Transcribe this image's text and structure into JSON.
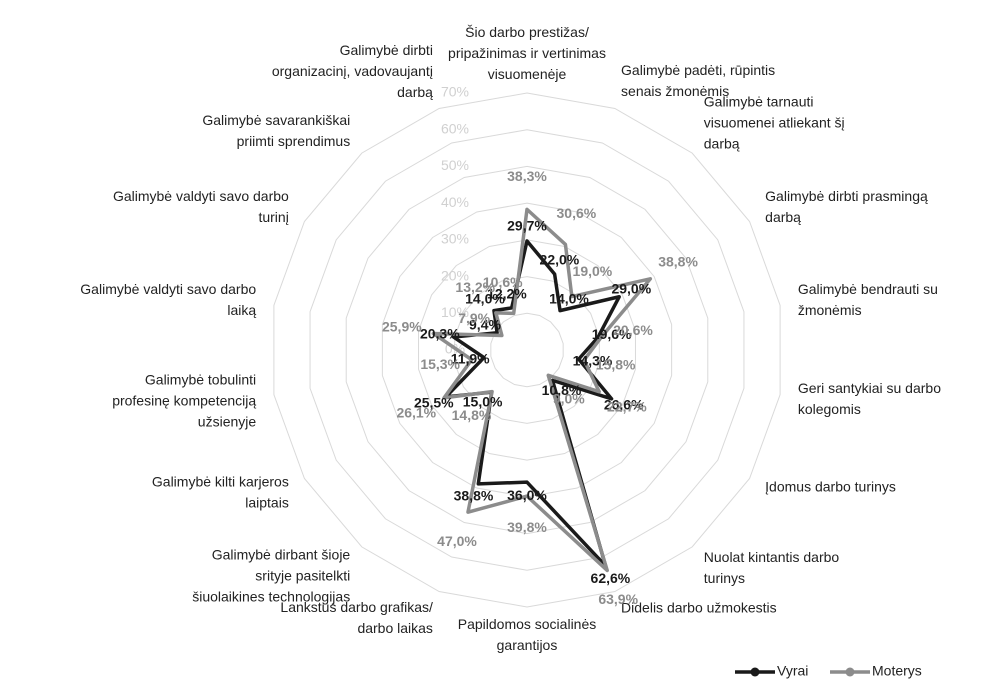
{
  "chart_data": {
    "type": "radar",
    "categories": [
      "Šio darbo prestižas/ pripažinimas ir vertinimas visuomenėje",
      "Galimybė padėti, rūpintis senais žmonėmis",
      "Galimybė tarnauti visuomenei atliekant šį darbą",
      "Galimybė dirbti prasmingą darbą",
      "Galimybė bendrauti su žmonėmis",
      "Geri santykiai su darbo kolegomis",
      "Įdomus darbo turinys",
      "Nuolat kintantis darbo turinys",
      "Didelis darbo užmokestis",
      "Papildomos socialinės garantijos",
      "Lankstus darbo grafikas/ darbo laikas",
      "Galimybė dirbant šioje srityje pasitelkti šiuolaikines technologijas",
      "Galimybė kilti karjeros laiptais",
      "Galimybė tobulinti profesinę kompetenciją užsienyje",
      "Galimybė valdyti savo darbo laiką",
      "Galimybė valdyti savo darbo turinį",
      "Galimybė savarankiškai priimti sprendimus",
      "Galimybė dirbti organizacinį, vadovaujantį darbą"
    ],
    "series": [
      {
        "name": "Vyrai",
        "color": "#1a1a1a",
        "values": [
          29.7,
          22.0,
          14.0,
          29.0,
          19.6,
          14.3,
          26.6,
          10.8,
          62.6,
          36.0,
          38.8,
          15.0,
          25.5,
          11.9,
          20.3,
          9.4,
          14.0,
          12.2
        ],
        "value_labels": [
          "29,7%",
          "22,0%",
          "14,0%",
          "29,0%",
          "19,6%",
          "14,3%",
          "26,6%",
          "10,8%",
          "62,6%",
          "36,0%",
          "38,8%",
          "15,0%",
          "25,5%",
          "11,9%",
          "20,3%",
          "9,4%",
          "14,0%",
          "12,2%"
        ]
      },
      {
        "name": "Moterys",
        "color": "#8c8c8c",
        "values": [
          38.3,
          30.6,
          19.0,
          38.8,
          20.6,
          15.8,
          22.7,
          9.0,
          63.9,
          39.8,
          47.0,
          14.8,
          26.1,
          15.3,
          25.9,
          7.9,
          13.2,
          10.6
        ],
        "value_labels": [
          "38,3%",
          "30,6%",
          "19,0%",
          "38,8%",
          "20,6%",
          "15,8%",
          "22,7%",
          "9,0%",
          "63,9%",
          "39,8%",
          "47,0%",
          "14,8%",
          "26,1%",
          "15,3%",
          "25,9%",
          "7,9%",
          "13,2%",
          "10,6%"
        ]
      }
    ],
    "ylim": [
      0,
      70
    ],
    "yticks": [
      {
        "value": 0,
        "label": "0%"
      },
      {
        "value": 10,
        "label": "10%"
      },
      {
        "value": 20,
        "label": "20%"
      },
      {
        "value": 30,
        "label": "30%"
      },
      {
        "value": 40,
        "label": "40%"
      },
      {
        "value": 50,
        "label": "50%"
      },
      {
        "value": 60,
        "label": "60%"
      },
      {
        "value": 70,
        "label": "70%"
      }
    ],
    "grid": true,
    "legend": "bottom-right"
  }
}
